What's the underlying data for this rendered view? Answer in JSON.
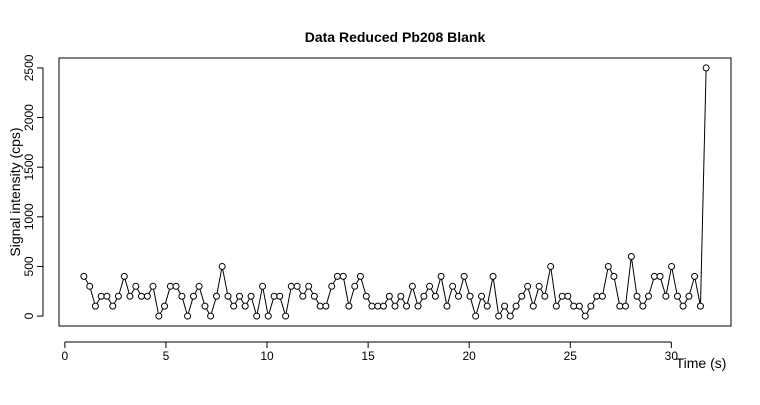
{
  "chart_data": {
    "type": "line",
    "title": "Data Reduced Pb208 Blank",
    "x_label": "Time (s)",
    "y_label": "Signal intensity (cps)",
    "x": [
      0.94,
      1.23,
      1.51,
      1.8,
      2.08,
      2.37,
      2.65,
      2.94,
      3.22,
      3.51,
      3.79,
      4.08,
      4.36,
      4.65,
      4.93,
      5.22,
      5.5,
      5.79,
      6.07,
      6.36,
      6.64,
      6.93,
      7.21,
      7.5,
      7.78,
      8.07,
      8.35,
      8.64,
      8.92,
      9.21,
      9.49,
      9.78,
      10.06,
      10.35,
      10.63,
      10.92,
      11.2,
      11.49,
      11.77,
      12.06,
      12.34,
      12.63,
      12.91,
      13.2,
      13.48,
      13.77,
      14.05,
      14.34,
      14.62,
      14.91,
      15.19,
      15.48,
      15.76,
      16.05,
      16.33,
      16.62,
      16.9,
      17.19,
      17.47,
      17.76,
      18.04,
      18.33,
      18.61,
      18.9,
      19.18,
      19.47,
      19.75,
      20.04,
      20.32,
      20.61,
      20.89,
      21.18,
      21.46,
      21.75,
      22.03,
      22.32,
      22.6,
      22.89,
      23.17,
      23.46,
      23.74,
      24.03,
      24.31,
      24.6,
      24.88,
      25.17,
      25.45,
      25.74,
      26.02,
      26.31,
      26.59,
      26.88,
      27.16,
      27.45,
      27.73,
      28.02,
      28.3,
      28.59,
      28.87,
      29.16,
      29.44,
      29.73,
      30.01,
      30.3,
      30.58,
      30.87,
      31.15,
      31.44,
      31.72
    ],
    "values": [
      400,
      300,
      100,
      200,
      200,
      100,
      200,
      400,
      200,
      300,
      200,
      200,
      300,
      0,
      100,
      300,
      300,
      200,
      0,
      200,
      300,
      100,
      0,
      200,
      500,
      200,
      100,
      200,
      100,
      200,
      0,
      300,
      0,
      200,
      200,
      0,
      300,
      300,
      200,
      300,
      200,
      100,
      100,
      300,
      400,
      400,
      100,
      300,
      400,
      200,
      100,
      100,
      100,
      200,
      100,
      200,
      100,
      300,
      100,
      200,
      300,
      200,
      400,
      100,
      300,
      200,
      400,
      200,
      0,
      200,
      100,
      400,
      0,
      100,
      0,
      100,
      200,
      300,
      100,
      300,
      200,
      500,
      100,
      200,
      200,
      100,
      100,
      0,
      100,
      200,
      200,
      500,
      400,
      100,
      100,
      600,
      200,
      100,
      200,
      400,
      400,
      200,
      500,
      200,
      100,
      200,
      400,
      100,
      2500
    ],
    "color": "#000000",
    "xlim": [
      -0.29,
      32.95
    ],
    "ylim": [
      -100,
      2600
    ],
    "xticks": [
      0,
      5,
      10,
      15,
      20,
      25,
      30
    ],
    "yticks": [
      0,
      500,
      1000,
      1500,
      2000,
      2500
    ]
  }
}
